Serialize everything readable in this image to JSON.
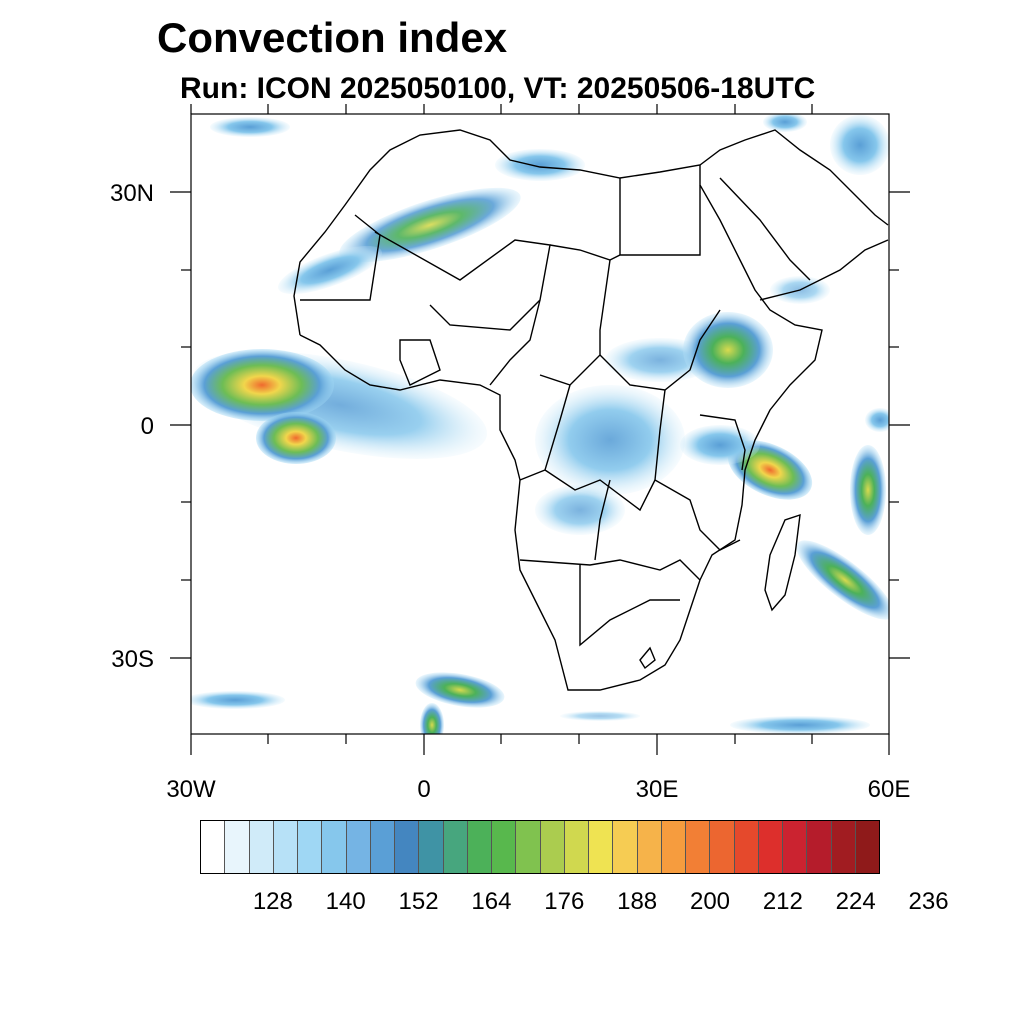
{
  "title": "Convection index",
  "subtitle": "Run: ICON 2025050100,  VT: 20250506-18UTC",
  "lat_labels": [
    "30N",
    "0",
    "30S"
  ],
  "lon_labels": [
    "30W",
    "0",
    "30E",
    "60E"
  ],
  "colorbar": {
    "labels": [
      "128",
      "140",
      "152",
      "164",
      "176",
      "188",
      "200",
      "212",
      "224",
      "236"
    ],
    "colors": [
      "#ffffff",
      "#e8f5fc",
      "#d0ebf9",
      "#b7e1f7",
      "#9fd7f4",
      "#86c7ec",
      "#75b4e4",
      "#5a9fd6",
      "#4486c0",
      "#3f93a5",
      "#47a67e",
      "#4cb159",
      "#58b84d",
      "#80c24f",
      "#abcc4f",
      "#d0d84f",
      "#efe352",
      "#f6cc53",
      "#f6b34a",
      "#f69c3e",
      "#f27f35",
      "#ec6630",
      "#e5492c",
      "#dd2f2c",
      "#cb2330",
      "#b51c2b",
      "#a11c21",
      "#8f1a1a"
    ]
  }
}
